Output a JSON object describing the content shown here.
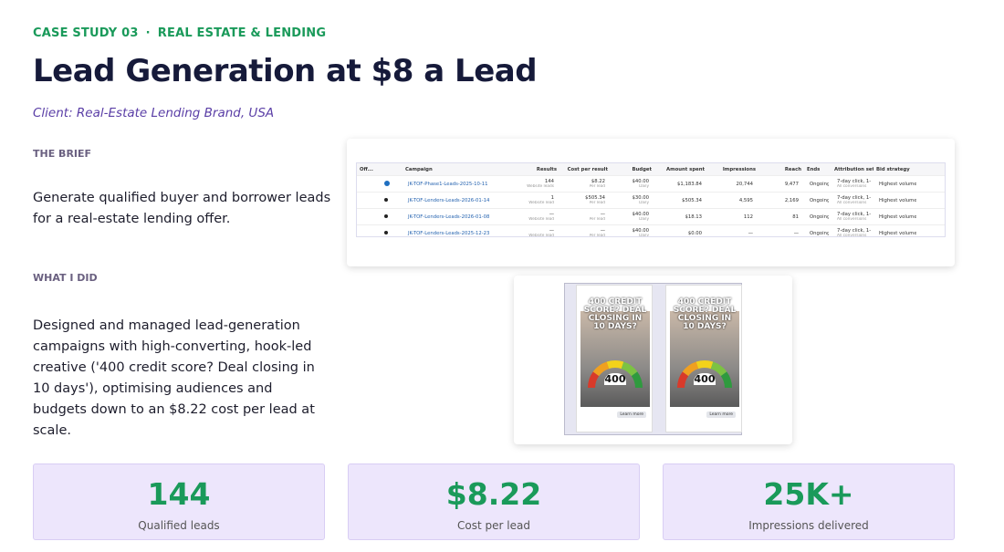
{
  "header": {
    "eyebrow": [
      "CASE STUDY 03",
      "REAL ESTATE & LENDING"
    ],
    "separator": "·",
    "title": "Lead Generation at $8 a Lead",
    "client": "Client: Real-Estate Lending Brand, USA"
  },
  "sections": [
    {
      "heading": "THE BRIEF",
      "body": "Generate qualified buyer and borrower leads for a real-estate lending offer."
    },
    {
      "heading": "WHAT I DID",
      "body": "Designed and managed lead-generation campaigns with high-converting, hook-led creative ('400 credit score? Deal closing in 10 days'), optimising audiences and budgets down to an $8.22 cost per lead at scale."
    }
  ],
  "ads_table": {
    "columns": [
      "Off...",
      "Campaign",
      "Results",
      "Cost per result",
      "Budget",
      "Amount spent",
      "Impressions",
      "Reach",
      "Ends",
      "Attribution setting",
      "Bid strategy"
    ],
    "rows": [
      {
        "campaign": "JK-TOF-Phase1-Leads-2025-10-11",
        "results": "144",
        "results_note": "Website leads",
        "cost": "$8.22",
        "cost_note": "Per lead",
        "budget": "$40.00",
        "budget_note": "Daily",
        "spent": "$1,183.84",
        "impressions": "20,744",
        "reach": "9,477",
        "ends": "Ongoing",
        "attribution": "7-day click, 1-...",
        "attribution_note": "All conversions",
        "bid": "Highest volume"
      },
      {
        "campaign": "JK-TOF-Lenders-Leads-2026-01-14",
        "results": "1",
        "results_note": "Website lead",
        "cost": "$505.34",
        "cost_note": "Per lead",
        "budget": "$30.00",
        "budget_note": "Daily",
        "spent": "$505.34",
        "impressions": "4,595",
        "reach": "2,169",
        "ends": "Ongoing",
        "attribution": "7-day click, 1-...",
        "attribution_note": "All conversions",
        "bid": "Highest volume"
      },
      {
        "campaign": "JK-TOF-Lenders-Leads-2026-01-08",
        "results": "—",
        "results_note": "Website lead",
        "cost": "—",
        "cost_note": "Per lead",
        "budget": "$40.00",
        "budget_note": "Daily",
        "spent": "$18.13",
        "impressions": "112",
        "reach": "81",
        "ends": "Ongoing",
        "attribution": "7-day click, 1-...",
        "attribution_note": "All conversions",
        "bid": "Highest volume"
      },
      {
        "campaign": "JK-TOF-Lenders-Leads-2025-12-23",
        "results": "—",
        "results_note": "Website lead",
        "cost": "—",
        "cost_note": "Per lead",
        "budget": "$40.00",
        "budget_note": "Daily",
        "spent": "$0.00",
        "impressions": "—",
        "reach": "—",
        "ends": "Ongoing",
        "attribution": "7-day click, 1-...",
        "attribution_note": "All conversions",
        "bid": "Highest volume"
      }
    ]
  },
  "ad_creatives": [
    {
      "headline": "400 CREDIT SCORE? DEAL CLOSING IN 10 DAYS?",
      "score": "400",
      "cta": "Learn more"
    },
    {
      "headline": "400 CREDIT SCORE? DEAL CLOSING IN 10 DAYS?",
      "score": "400",
      "cta": "Learn more"
    }
  ],
  "stats": [
    {
      "value": "144",
      "label": "Qualified leads"
    },
    {
      "value": "$8.22",
      "label": "Cost per lead"
    },
    {
      "value": "25K+",
      "label": "Impressions delivered"
    }
  ]
}
